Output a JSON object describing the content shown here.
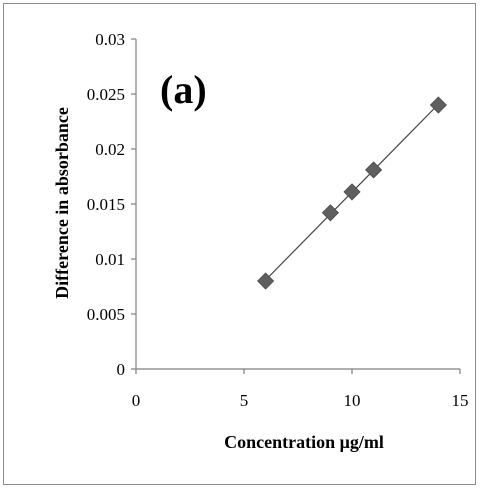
{
  "chart_data": {
    "type": "scatter",
    "panel_label": "(a)",
    "xlabel": "Concentration μg/ml",
    "ylabel": "Difference in absorbance",
    "xlim": [
      0,
      15
    ],
    "ylim": [
      0,
      0.03
    ],
    "x_ticks": [
      "0",
      "5",
      "10",
      "15"
    ],
    "y_ticks": [
      "0",
      "0.005",
      "0.01",
      "0.015",
      "0.02",
      "0.025",
      "0.03"
    ],
    "x_tick_values": [
      0,
      5,
      10,
      15
    ],
    "y_tick_values": [
      0,
      0.005,
      0.01,
      0.015,
      0.02,
      0.025,
      0.03
    ],
    "series": [
      {
        "x": [
          6,
          9,
          10,
          11,
          14
        ],
        "y": [
          0.008,
          0.0142,
          0.0161,
          0.0181,
          0.024
        ],
        "marker": "diamond",
        "color": "#5f5f5f"
      }
    ],
    "trendline": {
      "type": "linear",
      "color": "#444444"
    },
    "grid": false,
    "legend": "none"
  }
}
